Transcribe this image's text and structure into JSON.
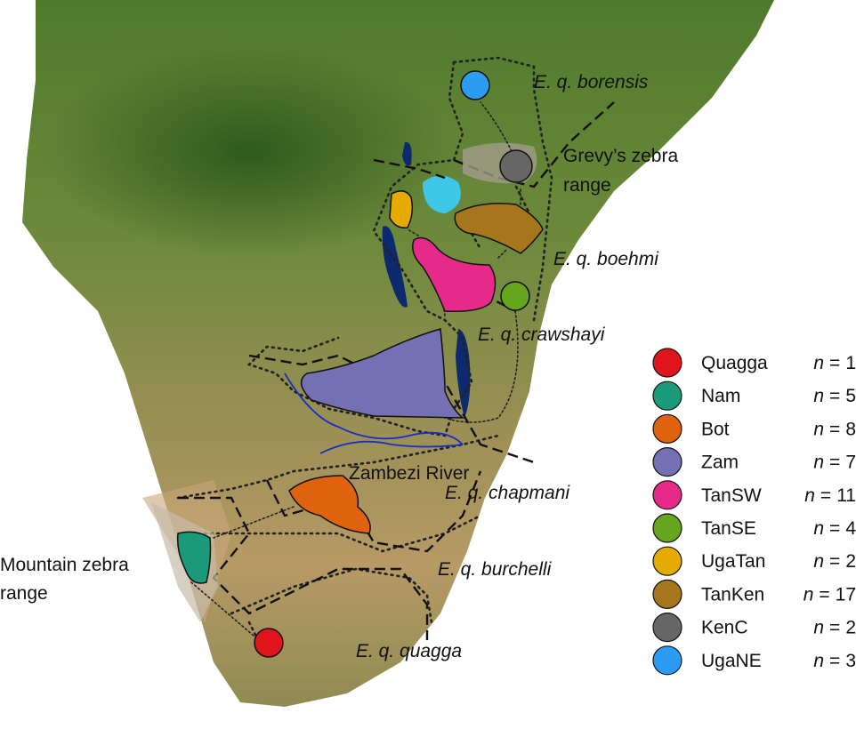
{
  "map": {
    "labels": {
      "borensis": "E. q. borensis",
      "grevy": [
        "Grevy’s zebra",
        "range"
      ],
      "boehmi": "E. q. boehmi",
      "crawshayi": "E. q. crawshayi",
      "zambezi": "Zambezi River",
      "chapmani": "E. q. chapmani",
      "burchelli": "E. q. burchelli",
      "quagga": "E. q. quagga",
      "mountain": [
        "Mountain zebra",
        "range"
      ]
    }
  },
  "legend": {
    "count_symbol": "n",
    "count_sign": "=",
    "entries": [
      {
        "name": "Quagga",
        "n": 1,
        "color": "#e0141b"
      },
      {
        "name": "Nam",
        "n": 5,
        "color": "#1a9a7a"
      },
      {
        "name": "Bot",
        "n": 8,
        "color": "#e0620f"
      },
      {
        "name": "Zam",
        "n": 7,
        "color": "#7570b3"
      },
      {
        "name": "TanSW",
        "n": 11,
        "color": "#e7298a"
      },
      {
        "name": "TanSE",
        "n": 4,
        "color": "#66a61e"
      },
      {
        "name": "UgaTan",
        "n": 2,
        "color": "#e6ab02"
      },
      {
        "name": "TanKen",
        "n": 17,
        "color": "#a6761d"
      },
      {
        "name": "KenC",
        "n": 2,
        "color": "#666666"
      },
      {
        "name": "UgaNE",
        "n": 3,
        "color": "#2b9cf2"
      }
    ]
  }
}
